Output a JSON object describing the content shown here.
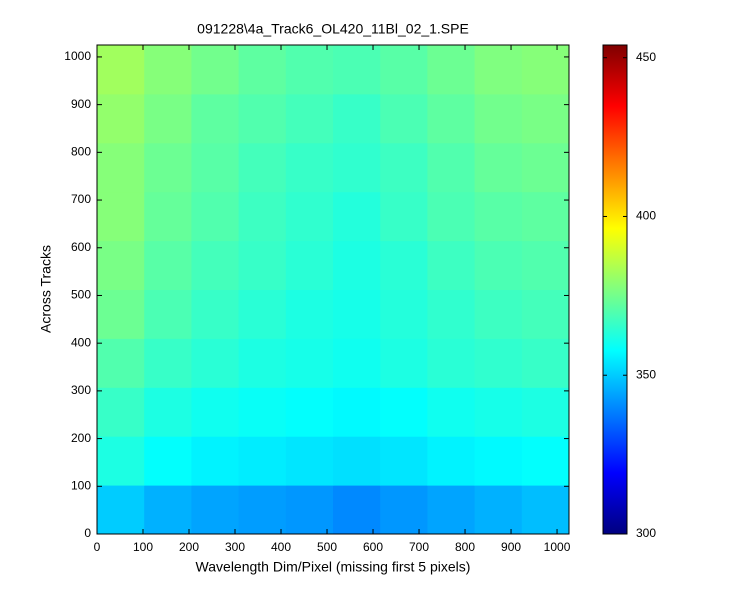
{
  "chart_data": {
    "type": "heatmap",
    "title": "091228\\4a_Track6_OL420_11Bl_02_1.SPE",
    "x_label": "Wavelength Dim/Pixel (missing first 5 pixels)",
    "y_label": "Across Tracks",
    "x_bins": [
      0,
      102.6,
      205.2,
      307.8,
      410.4,
      513,
      615.6,
      718.2,
      820.8,
      923.4,
      1026
    ],
    "y_bins": [
      0,
      102.5,
      205,
      307.5,
      410,
      512.5,
      615,
      717.5,
      820,
      922.5,
      1025
    ],
    "z": [
      [
        350,
        346,
        344,
        343,
        342,
        340,
        342,
        344,
        346,
        348
      ],
      [
        362,
        358,
        356,
        355,
        354,
        353,
        354,
        356,
        357,
        358
      ],
      [
        366,
        362,
        360,
        359,
        358,
        357,
        358,
        360,
        361,
        362
      ],
      [
        370,
        366,
        364,
        362,
        361,
        360,
        362,
        364,
        365,
        366
      ],
      [
        374,
        369,
        366,
        364,
        362,
        361,
        363,
        365,
        367,
        368
      ],
      [
        376,
        371,
        368,
        366,
        364,
        362,
        364,
        367,
        369,
        370
      ],
      [
        378,
        373,
        370,
        367,
        365,
        363,
        366,
        369,
        371,
        372
      ],
      [
        378,
        374,
        371,
        368,
        366,
        365,
        367,
        370,
        373,
        374
      ],
      [
        380,
        376,
        372,
        370,
        368,
        366,
        369,
        372,
        375,
        376
      ],
      [
        382,
        378,
        375,
        372,
        370,
        369,
        371,
        374,
        377,
        378
      ]
    ],
    "xlim": [
      0,
      1026
    ],
    "ylim": [
      0,
      1025
    ],
    "xticks": [
      0,
      100,
      200,
      300,
      400,
      500,
      600,
      700,
      800,
      900,
      1000
    ],
    "yticks": [
      0,
      100,
      200,
      300,
      400,
      500,
      600,
      700,
      800,
      900,
      1000
    ],
    "colormap": "jet",
    "clim": [
      300,
      454
    ],
    "cticks": [
      300,
      350,
      400,
      450
    ]
  }
}
